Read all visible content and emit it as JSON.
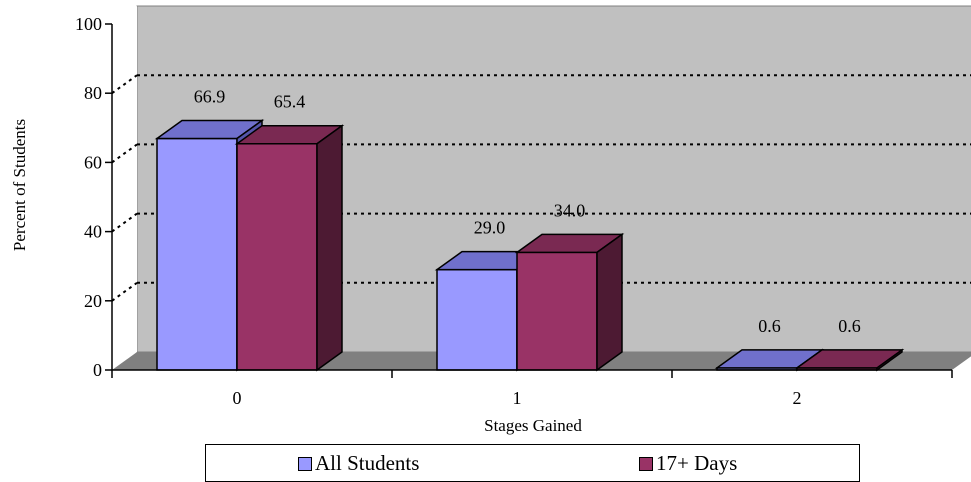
{
  "chart_data": {
    "type": "bar",
    "categories": [
      "0",
      "1",
      "2"
    ],
    "series": [
      {
        "name": "All Students",
        "values": [
          66.9,
          29.0,
          0.6
        ],
        "color": "#9999ff",
        "top_color": "#7070cc",
        "side_color": "#5555aa"
      },
      {
        "name": "17+ Days",
        "values": [
          65.4,
          34.0,
          0.6
        ],
        "color": "#993366",
        "top_color": "#7a2952",
        "side_color": "#4d1a33"
      }
    ],
    "value_labels": [
      [
        "66.9",
        "29.0",
        "0.6"
      ],
      [
        "65.4",
        "34.0",
        "0.6"
      ]
    ],
    "xlabel": "Stages Gained",
    "ylabel": "Percent of Students",
    "ylim": [
      0,
      100
    ],
    "yticks": [
      "0",
      "20",
      "40",
      "60",
      "80",
      "100"
    ],
    "grid": "dotted horizontal",
    "legend_placement": "bottom",
    "wall_color": "#c0c0c0",
    "floor_color": "#808080"
  }
}
